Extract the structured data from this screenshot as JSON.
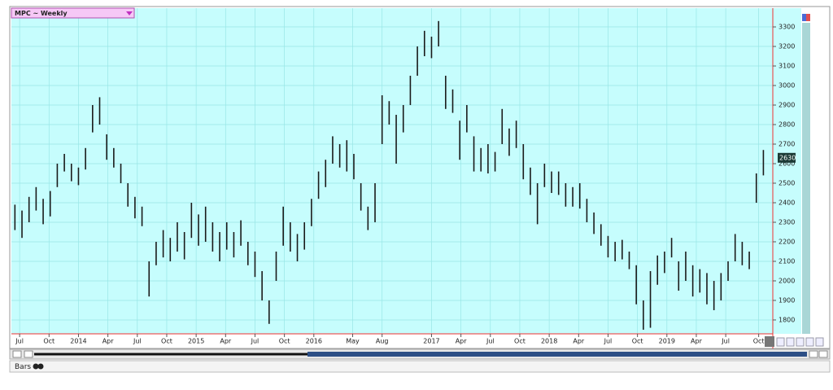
{
  "chart_data": {
    "type": "hilo",
    "title": "MPC ~ Weekly",
    "mode_label": "Bars",
    "xlim": [
      2013.43,
      2019.9
    ],
    "ylim": [
      1729,
      3396
    ],
    "grid": true,
    "color": "#1a1a1a",
    "last_price": 2630,
    "yticks": [
      1800,
      1900,
      2000,
      2100,
      2200,
      2300,
      2400,
      2500,
      2600,
      2700,
      2800,
      2900,
      3000,
      3100,
      3200,
      3300
    ],
    "xticks": [
      {
        "value": 2013.5,
        "label": "Jul"
      },
      {
        "value": 2013.75,
        "label": "Oct"
      },
      {
        "value": 2014,
        "label": "2014"
      },
      {
        "value": 2014.25,
        "label": "Apr"
      },
      {
        "value": 2014.5,
        "label": "Jul"
      },
      {
        "value": 2014.75,
        "label": "Oct"
      },
      {
        "value": 2015,
        "label": "2015"
      },
      {
        "value": 2015.25,
        "label": "Apr"
      },
      {
        "value": 2015.5,
        "label": "Jul"
      },
      {
        "value": 2015.75,
        "label": "Oct"
      },
      {
        "value": 2016,
        "label": "2016"
      },
      {
        "value": 2016.33,
        "label": "May"
      },
      {
        "value": 2016.58,
        "label": "Aug"
      },
      {
        "value": 2017,
        "label": "2017"
      },
      {
        "value": 2017.25,
        "label": "Apr"
      },
      {
        "value": 2017.5,
        "label": "Jul"
      },
      {
        "value": 2017.75,
        "label": "Oct"
      },
      {
        "value": 2018,
        "label": "2018"
      },
      {
        "value": 2018.25,
        "label": "Apr"
      },
      {
        "value": 2018.5,
        "label": "Jul"
      },
      {
        "value": 2018.75,
        "label": "Oct"
      },
      {
        "value": 2019,
        "label": "2019"
      },
      {
        "value": 2019.25,
        "label": "Apr"
      },
      {
        "value": 2019.5,
        "label": "Jul"
      },
      {
        "value": 2019.78,
        "label": "Oct"
      }
    ],
    "x": [
      2013.46,
      2013.52,
      2013.58,
      2013.64,
      2013.7,
      2013.76,
      2013.82,
      2013.88,
      2013.94,
      2014.0,
      2014.06,
      2014.12,
      2014.18,
      2014.24,
      2014.3,
      2014.36,
      2014.42,
      2014.48,
      2014.54,
      2014.6,
      2014.66,
      2014.72,
      2014.78,
      2014.84,
      2014.9,
      2014.96,
      2015.02,
      2015.08,
      2015.14,
      2015.2,
      2015.26,
      2015.32,
      2015.38,
      2015.44,
      2015.5,
      2015.56,
      2015.62,
      2015.68,
      2015.74,
      2015.8,
      2015.86,
      2015.92,
      2015.98,
      2016.04,
      2016.1,
      2016.16,
      2016.22,
      2016.28,
      2016.34,
      2016.4,
      2016.46,
      2016.52,
      2016.58,
      2016.64,
      2016.7,
      2016.76,
      2016.82,
      2016.88,
      2016.94,
      2017.0,
      2017.06,
      2017.12,
      2017.18,
      2017.24,
      2017.3,
      2017.36,
      2017.42,
      2017.48,
      2017.54,
      2017.6,
      2017.66,
      2017.72,
      2017.78,
      2017.84,
      2017.9,
      2017.96,
      2018.02,
      2018.08,
      2018.14,
      2018.2,
      2018.26,
      2018.32,
      2018.38,
      2018.44,
      2018.5,
      2018.56,
      2018.62,
      2018.68,
      2018.74,
      2018.8,
      2018.86,
      2018.92,
      2018.98,
      2019.04,
      2019.1,
      2019.16,
      2019.22,
      2019.28,
      2019.34,
      2019.4,
      2019.46,
      2019.52,
      2019.58,
      2019.64,
      2019.7,
      2019.76,
      2019.82
    ],
    "high": [
      2390,
      2360,
      2430,
      2480,
      2420,
      2460,
      2600,
      2650,
      2600,
      2580,
      2680,
      2900,
      2940,
      2750,
      2680,
      2600,
      2500,
      2430,
      2380,
      2100,
      2200,
      2260,
      2220,
      2300,
      2250,
      2400,
      2340,
      2380,
      2300,
      2250,
      2300,
      2250,
      2310,
      2200,
      2150,
      2050,
      1900,
      2150,
      2380,
      2300,
      2240,
      2300,
      2420,
      2560,
      2620,
      2740,
      2700,
      2720,
      2650,
      2500,
      2380,
      2500,
      2950,
      2920,
      2850,
      2900,
      3050,
      3200,
      3280,
      3250,
      3330,
      3050,
      2980,
      2820,
      2900,
      2740,
      2680,
      2700,
      2660,
      2880,
      2780,
      2820,
      2700,
      2580,
      2500,
      2600,
      2560,
      2560,
      2500,
      2480,
      2500,
      2420,
      2350,
      2290,
      2230,
      2200,
      2210,
      2150,
      2080,
      1900,
      2050,
      2130,
      2150,
      2220,
      2100,
      2150,
      2080,
      2060,
      2040,
      2000,
      2040,
      2100,
      2240,
      2200,
      2150,
      2550,
      2670
    ],
    "low": [
      2260,
      2220,
      2300,
      2360,
      2290,
      2330,
      2480,
      2560,
      2510,
      2490,
      2570,
      2760,
      2800,
      2620,
      2580,
      2500,
      2380,
      2320,
      2280,
      1920,
      2080,
      2120,
      2100,
      2150,
      2110,
      2220,
      2180,
      2200,
      2150,
      2100,
      2160,
      2120,
      2180,
      2080,
      2020,
      1900,
      1780,
      2000,
      2180,
      2150,
      2100,
      2160,
      2280,
      2420,
      2480,
      2600,
      2580,
      2560,
      2520,
      2360,
      2260,
      2300,
      2700,
      2800,
      2600,
      2760,
      2900,
      3050,
      3150,
      3140,
      3200,
      2880,
      2860,
      2620,
      2760,
      2560,
      2560,
      2550,
      2560,
      2700,
      2640,
      2680,
      2520,
      2440,
      2290,
      2480,
      2450,
      2440,
      2380,
      2380,
      2370,
      2300,
      2240,
      2180,
      2120,
      2100,
      2110,
      2060,
      1880,
      1750,
      1760,
      1980,
      2040,
      2120,
      1950,
      2000,
      1920,
      1940,
      1880,
      1850,
      1900,
      2000,
      2100,
      2080,
      2060,
      2400,
      2540
    ]
  }
}
